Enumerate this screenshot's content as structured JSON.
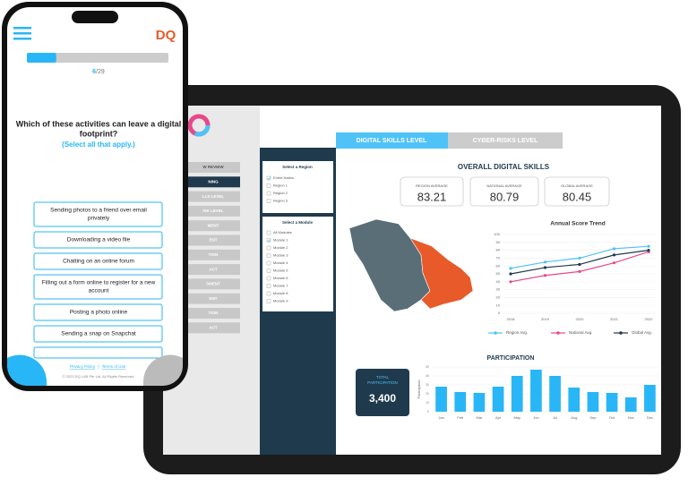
{
  "phone": {
    "logo": "DQ",
    "progress": {
      "current": 6,
      "separator": "/",
      "total": 29
    },
    "question": [
      "Which of these activities can leave a digital",
      "footprint?"
    ],
    "hint": "(Select all that apply.)",
    "options": [
      [
        "Sending photos to a friend over email",
        "privately"
      ],
      [
        "Downloading a video file"
      ],
      [
        "Chatting on an online forum"
      ],
      [
        "Filling out a form online to register for a new",
        "account"
      ],
      [
        "Posting a photo online"
      ],
      [
        "Sending a snap on Snapchat"
      ]
    ],
    "footer": {
      "privacy": "Privacy Policy",
      "divider": "|",
      "terms": "Terms of Use",
      "copyright": "© 2023 DQ LAB Pte Ltd. All Rights Reserved."
    }
  },
  "dashboard": {
    "sidebar": [
      "W REVIEW",
      "NING",
      "LLS LEVEL",
      "ISK LEVEL",
      "MENT",
      "ENT",
      "TION",
      "ACT",
      "SMENT",
      "ENT",
      "TION",
      "ACT"
    ],
    "tabs": [
      "DIGITAL SKILLS LEVEL",
      "CYBER-RISKS LEVEL"
    ],
    "region_title": "Select a Region",
    "regions": [
      {
        "label": "Entire Nation",
        "checked": true
      },
      {
        "label": "Region 1",
        "checked": false
      },
      {
        "label": "Region 2",
        "checked": false
      },
      {
        "label": "Region 3",
        "checked": false
      }
    ],
    "module_title": "Select a Module",
    "modules": [
      {
        "label": "All Modules",
        "checked": false
      },
      {
        "label": "Module 1",
        "checked": true
      },
      {
        "label": "Module 2",
        "checked": false
      },
      {
        "label": "Module 3",
        "checked": false
      },
      {
        "label": "Module 4",
        "checked": false
      },
      {
        "label": "Module 5",
        "checked": false
      },
      {
        "label": "Module 6",
        "checked": false
      },
      {
        "label": "Module 7",
        "checked": false
      },
      {
        "label": "Module 8",
        "checked": false
      },
      {
        "label": "Module 9",
        "checked": false
      }
    ],
    "title": "OVERALL DIGITAL SKILLS",
    "stats": [
      {
        "label": "REGION AVERAGE",
        "value": "83.21"
      },
      {
        "label": "NATIONAL AVERAGE",
        "value": "80.79"
      },
      {
        "label": "GLOBAL AVERAGE",
        "value": "80.45"
      }
    ],
    "total": {
      "label": [
        "TOTAL",
        "PARTICIPATION"
      ],
      "value": "3,400"
    }
  },
  "chart_data": [
    {
      "type": "line",
      "title": "Annual Score Trend",
      "categories": [
        "2018",
        "2019",
        "2020",
        "2021",
        "2022"
      ],
      "series": [
        {
          "name": "Region Avg.",
          "color": "#4fc3f7",
          "values": [
            57,
            65,
            70,
            82,
            85
          ]
        },
        {
          "name": "National Avg.",
          "color": "#e8488a",
          "values": [
            40,
            48,
            53,
            64,
            78
          ]
        },
        {
          "name": "Global Avg.",
          "color": "#1f3a4d",
          "values": [
            50,
            58,
            62,
            74,
            80
          ]
        }
      ],
      "ylim": [
        0,
        100
      ],
      "yticks": [
        0,
        10,
        20,
        30,
        40,
        50,
        60,
        70,
        80,
        90,
        100
      ],
      "grid": true
    },
    {
      "type": "bar",
      "title": "PARTICIPATION",
      "y_label": "Participants",
      "categories": [
        "Jan",
        "Feb",
        "Mar",
        "Apr",
        "May",
        "Jun",
        "Jul",
        "Aug",
        "Sep",
        "Oct",
        "Nov",
        "Dec"
      ],
      "values": [
        28,
        22,
        21,
        28,
        40,
        47,
        40,
        27,
        22,
        21,
        16,
        30
      ],
      "color": "#29b6f6",
      "ylim": [
        0,
        50
      ],
      "yticks": [
        0,
        10,
        20,
        30,
        40,
        50
      ],
      "grid": true
    }
  ]
}
